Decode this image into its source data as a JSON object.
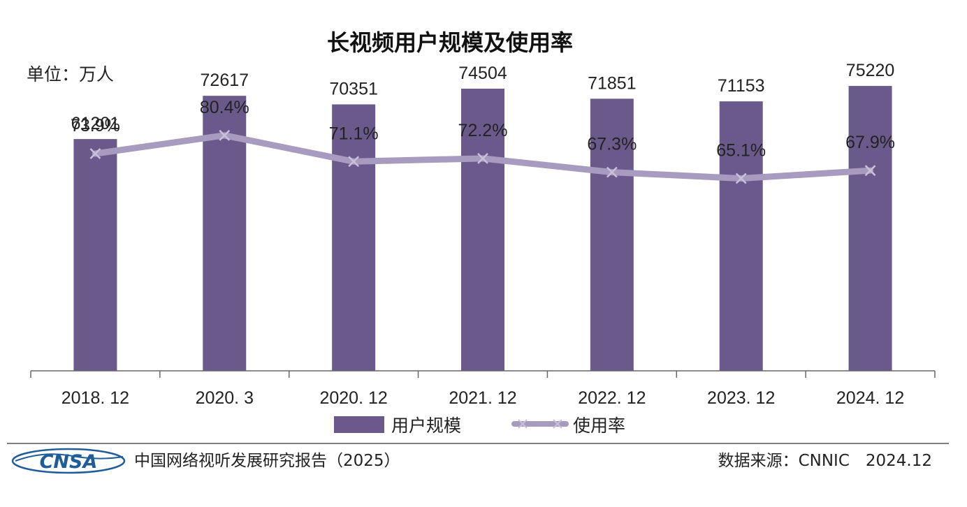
{
  "chart_data": {
    "type": "bar",
    "title": "长视频用户规模及使用率",
    "unit_label": "单位：万人",
    "categories": [
      "2018. 12",
      "2020. 3",
      "2020. 12",
      "2021. 12",
      "2022. 12",
      "2023. 12",
      "2024. 12"
    ],
    "series": [
      {
        "name": "用户规模",
        "type": "bar",
        "values": [
          61201,
          72617,
          70351,
          74504,
          71851,
          71153,
          75220
        ],
        "labels": [
          "61201",
          "72617",
          "70351",
          "74504",
          "71851",
          "71153",
          "75220"
        ],
        "color": "#6a5a8c"
      },
      {
        "name": "使用率",
        "type": "line",
        "values": [
          73.9,
          80.4,
          71.1,
          72.2,
          67.3,
          65.1,
          67.9
        ],
        "labels": [
          "73.9%",
          "80.4%",
          "71.1%",
          "72.2%",
          "67.3%",
          "65.1%",
          "67.9%"
        ],
        "color": "#a89bc0"
      }
    ],
    "legend_position": "bottom",
    "grid": false
  },
  "footer": {
    "logo": "CNSA",
    "report_title": "中国网络视听发展研究报告（2025）",
    "source": "数据来源：CNNIC　2024.12"
  },
  "colors": {
    "bar": "#6a5a8c",
    "line": "#a89bc0",
    "logo_blue": "#1f5d99",
    "axis": "#666666"
  }
}
